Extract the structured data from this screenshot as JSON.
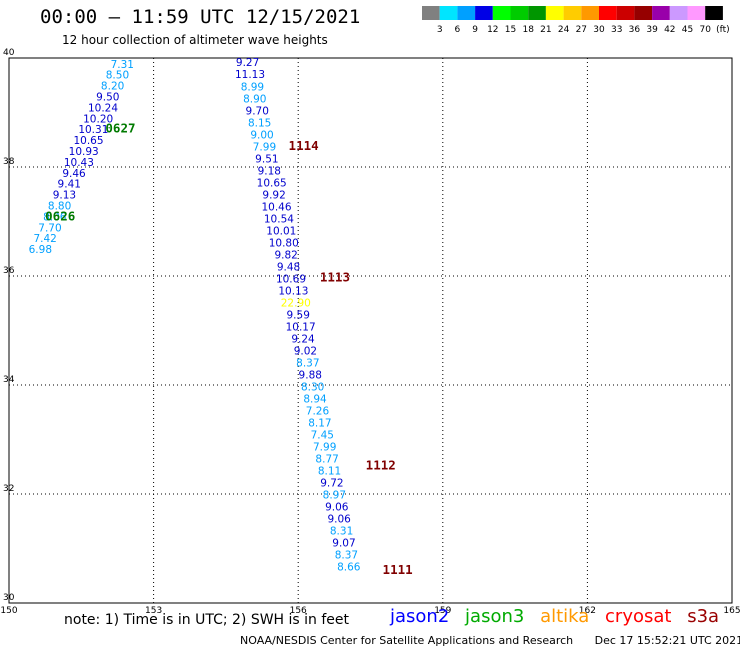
{
  "header": {
    "title": "00:00 – 11:59 UTC 12/15/2021",
    "subtitle": "12 hour collection of altimeter wave heights"
  },
  "color_scale": {
    "colors": [
      "#808080",
      "#00e5ff",
      "#00a0ff",
      "#0000e6",
      "#00ff00",
      "#00cc00",
      "#009600",
      "#ffff00",
      "#ffcc00",
      "#ff9900",
      "#ff0000",
      "#cc0000",
      "#960000",
      "#9900aa",
      "#cc99ff",
      "#ff99ff",
      "#000000"
    ],
    "labels": [
      "3",
      "6",
      "9",
      "12",
      "15",
      "18",
      "21",
      "24",
      "27",
      "30",
      "33",
      "36",
      "39",
      "42",
      "45",
      "70",
      "(ft)"
    ]
  },
  "map": {
    "lon_ticks": [
      "150",
      "153",
      "156",
      "159",
      "162",
      "165"
    ],
    "lat_ticks": [
      "30",
      "32",
      "34",
      "36",
      "38",
      "40"
    ],
    "lon_range": [
      150,
      165
    ],
    "lat_range": [
      30,
      40
    ]
  },
  "tracks": [
    {
      "id": "pass-0627-0626",
      "color": "#0000cc",
      "points": [
        {
          "lon": 152.35,
          "lat": 39.82,
          "swh": "7.31",
          "color": "#00a0ff"
        },
        {
          "lon": 152.25,
          "lat": 39.62,
          "swh": "8.50",
          "color": "#00a0ff"
        },
        {
          "lon": 152.15,
          "lat": 39.42,
          "swh": "8.20",
          "color": "#00a0ff"
        },
        {
          "lon": 152.05,
          "lat": 39.22,
          "swh": "9.50",
          "color": "#0000cc"
        },
        {
          "lon": 151.95,
          "lat": 39.02,
          "swh": "10.24",
          "color": "#0000cc"
        },
        {
          "lon": 151.85,
          "lat": 38.82,
          "swh": "10.20",
          "color": "#0000cc"
        },
        {
          "lon": 151.75,
          "lat": 38.62,
          "swh": "10.31",
          "color": "#0000cc"
        },
        {
          "lon": 151.65,
          "lat": 38.42,
          "swh": "10.65",
          "color": "#0000cc"
        },
        {
          "lon": 151.55,
          "lat": 38.22,
          "swh": "10.93",
          "color": "#0000cc"
        },
        {
          "lon": 151.45,
          "lat": 38.02,
          "swh": "10.43",
          "color": "#0000cc"
        },
        {
          "lon": 151.35,
          "lat": 37.82,
          "swh": "9.46",
          "color": "#0000cc"
        },
        {
          "lon": 151.25,
          "lat": 37.62,
          "swh": "9.41",
          "color": "#0000cc"
        },
        {
          "lon": 151.15,
          "lat": 37.42,
          "swh": "9.13",
          "color": "#0000cc"
        },
        {
          "lon": 151.05,
          "lat": 37.22,
          "swh": "8.80",
          "color": "#00a0ff"
        },
        {
          "lon": 150.95,
          "lat": 37.02,
          "swh": "8.06",
          "color": "#00a0ff"
        },
        {
          "lon": 150.85,
          "lat": 36.82,
          "swh": "7.70",
          "color": "#00a0ff"
        },
        {
          "lon": 150.75,
          "lat": 36.62,
          "swh": "7.42",
          "color": "#00a0ff"
        },
        {
          "lon": 150.65,
          "lat": 36.42,
          "swh": "6.98",
          "color": "#00a0ff"
        }
      ]
    },
    {
      "id": "pass-1114-1111",
      "color": "#0000cc",
      "points": [
        {
          "lon": 154.95,
          "lat": 39.85,
          "swh": "9.27",
          "color": "#0000cc"
        },
        {
          "lon": 155.0,
          "lat": 39.63,
          "swh": "11.13",
          "color": "#0000cc"
        },
        {
          "lon": 155.05,
          "lat": 39.4,
          "swh": "8.99",
          "color": "#00a0ff"
        },
        {
          "lon": 155.1,
          "lat": 39.18,
          "swh": "8.90",
          "color": "#00a0ff"
        },
        {
          "lon": 155.15,
          "lat": 38.96,
          "swh": "9.70",
          "color": "#0000cc"
        },
        {
          "lon": 155.2,
          "lat": 38.74,
          "swh": "8.15",
          "color": "#00a0ff"
        },
        {
          "lon": 155.25,
          "lat": 38.52,
          "swh": "9.00",
          "color": "#00a0ff"
        },
        {
          "lon": 155.3,
          "lat": 38.3,
          "swh": "7.99",
          "color": "#00a0ff"
        },
        {
          "lon": 155.35,
          "lat": 38.08,
          "swh": "9.51",
          "color": "#0000cc"
        },
        {
          "lon": 155.4,
          "lat": 37.86,
          "swh": "9.18",
          "color": "#0000cc"
        },
        {
          "lon": 155.45,
          "lat": 37.64,
          "swh": "10.65",
          "color": "#0000cc"
        },
        {
          "lon": 155.5,
          "lat": 37.42,
          "swh": "9.92",
          "color": "#0000cc"
        },
        {
          "lon": 155.55,
          "lat": 37.2,
          "swh": "10.46",
          "color": "#0000cc"
        },
        {
          "lon": 155.6,
          "lat": 36.98,
          "swh": "10.54",
          "color": "#0000cc"
        },
        {
          "lon": 155.65,
          "lat": 36.76,
          "swh": "10.01",
          "color": "#0000cc"
        },
        {
          "lon": 155.7,
          "lat": 36.54,
          "swh": "10.80",
          "color": "#0000cc"
        },
        {
          "lon": 155.75,
          "lat": 36.32,
          "swh": "9.82",
          "color": "#0000cc"
        },
        {
          "lon": 155.8,
          "lat": 36.1,
          "swh": "9.48",
          "color": "#0000cc"
        },
        {
          "lon": 155.85,
          "lat": 35.88,
          "swh": "10.69",
          "color": "#0000cc"
        },
        {
          "lon": 155.9,
          "lat": 35.66,
          "swh": "10.13",
          "color": "#0000cc"
        },
        {
          "lon": 155.95,
          "lat": 35.44,
          "swh": "22.90",
          "color": "#ffff00"
        },
        {
          "lon": 156.0,
          "lat": 35.22,
          "swh": "9.59",
          "color": "#0000cc"
        },
        {
          "lon": 156.05,
          "lat": 35.0,
          "swh": "10.17",
          "color": "#0000cc"
        },
        {
          "lon": 156.1,
          "lat": 34.78,
          "swh": "9.24",
          "color": "#0000cc"
        },
        {
          "lon": 156.15,
          "lat": 34.56,
          "swh": "9.02",
          "color": "#0000cc"
        },
        {
          "lon": 156.2,
          "lat": 34.34,
          "swh": "8.37",
          "color": "#00a0ff"
        },
        {
          "lon": 156.25,
          "lat": 34.12,
          "swh": "9.88",
          "color": "#0000cc"
        },
        {
          "lon": 156.3,
          "lat": 33.9,
          "swh": "8.30",
          "color": "#00a0ff"
        },
        {
          "lon": 156.35,
          "lat": 33.68,
          "swh": "8.94",
          "color": "#00a0ff"
        },
        {
          "lon": 156.4,
          "lat": 33.46,
          "swh": "7.26",
          "color": "#00a0ff"
        },
        {
          "lon": 156.45,
          "lat": 33.24,
          "swh": "8.17",
          "color": "#00a0ff"
        },
        {
          "lon": 156.5,
          "lat": 33.02,
          "swh": "7.45",
          "color": "#00a0ff"
        },
        {
          "lon": 156.55,
          "lat": 32.8,
          "swh": "7.99",
          "color": "#00a0ff"
        },
        {
          "lon": 156.6,
          "lat": 32.58,
          "swh": "8.77",
          "color": "#00a0ff"
        },
        {
          "lon": 156.65,
          "lat": 32.36,
          "swh": "8.11",
          "color": "#00a0ff"
        },
        {
          "lon": 156.7,
          "lat": 32.14,
          "swh": "9.72",
          "color": "#0000cc"
        },
        {
          "lon": 156.75,
          "lat": 31.92,
          "swh": "8.97",
          "color": "#00a0ff"
        },
        {
          "lon": 156.8,
          "lat": 31.7,
          "swh": "9.06",
          "color": "#0000cc"
        },
        {
          "lon": 156.85,
          "lat": 31.48,
          "swh": "9.06",
          "color": "#0000cc"
        },
        {
          "lon": 156.9,
          "lat": 31.26,
          "swh": "8.31",
          "color": "#00a0ff"
        },
        {
          "lon": 156.95,
          "lat": 31.04,
          "swh": "9.07",
          "color": "#0000cc"
        },
        {
          "lon": 157.0,
          "lat": 30.82,
          "swh": "8.37",
          "color": "#00a0ff"
        },
        {
          "lon": 157.05,
          "lat": 30.6,
          "swh": "8.66",
          "color": "#00a0ff"
        }
      ]
    }
  ],
  "time_labels": [
    {
      "text": "0627",
      "lon": 152.0,
      "lat": 38.63,
      "color": "#007a00"
    },
    {
      "text": "0626",
      "lon": 150.75,
      "lat": 37.02,
      "color": "#007a00"
    },
    {
      "text": "1114",
      "lon": 155.8,
      "lat": 38.31,
      "color": "#800000"
    },
    {
      "text": "1113",
      "lon": 156.45,
      "lat": 35.9,
      "color": "#800000"
    },
    {
      "text": "1112",
      "lon": 157.4,
      "lat": 32.45,
      "color": "#800000"
    },
    {
      "text": "1111",
      "lon": 157.75,
      "lat": 30.53,
      "color": "#800000"
    }
  ],
  "note": "note:  1) Time is in UTC;  2) SWH is in feet",
  "satellites": [
    {
      "name": "jason2",
      "color": "#0000ff"
    },
    {
      "name": "jason3",
      "color": "#00aa00"
    },
    {
      "name": "altika",
      "color": "#ff9900"
    },
    {
      "name": "cryosat",
      "color": "#ff0000"
    },
    {
      "name": "s3a",
      "color": "#990000"
    }
  ],
  "footer": {
    "credit": "NOAA/NESDIS Center for Satellite Applications and Research",
    "date": "Dec 17 15:52:21 UTC 2021"
  }
}
